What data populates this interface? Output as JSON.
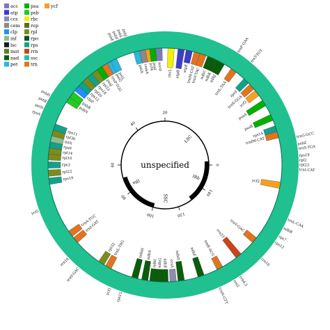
{
  "center_label": "unspecified",
  "legend": [
    {
      "label": "acc",
      "color": "#7b7bb5"
    },
    {
      "label": "atp",
      "color": "#3d3dc9"
    },
    {
      "label": "ccs",
      "color": "#8c8cb0"
    },
    {
      "label": "cem",
      "color": "#8a8a8a"
    },
    {
      "label": "clp",
      "color": "#1e90ff"
    },
    {
      "label": "inf",
      "color": "#8fbc8f"
    },
    {
      "label": "lsc",
      "color": "#1a1a1a"
    },
    {
      "label": "mat",
      "color": "#5f7f2a"
    },
    {
      "label": "nad",
      "color": "#0a5d0a"
    },
    {
      "label": "pet",
      "color": "#29b6e0"
    },
    {
      "label": "psa",
      "color": "#00b000"
    },
    {
      "label": "psb",
      "color": "#22c922"
    },
    {
      "label": "rbc",
      "color": "#f0f000"
    },
    {
      "label": "rep",
      "color": "#556b2f"
    },
    {
      "label": "rpl",
      "color": "#7a8c1e"
    },
    {
      "label": "rpo",
      "color": "#0f4d2f"
    },
    {
      "label": "rps",
      "color": "#14a08a"
    },
    {
      "label": "rrn",
      "color": "#c8441a"
    },
    {
      "label": "ssc",
      "color": "#20c0a8"
    },
    {
      "label": "trn",
      "color": "#e2731f"
    },
    {
      "label": "ycf",
      "color": "#f5a020"
    }
  ],
  "region_labels": [
    "LSC",
    "IRb",
    "SSC",
    "IRa"
  ],
  "ticks": [
    "0",
    "20",
    "40",
    "60",
    "80",
    "100",
    "120",
    "140"
  ],
  "genes": [
    {
      "label": "rps19",
      "angle": 86,
      "side": "out",
      "color": "#14a08a",
      "r0": 174,
      "r1": 184
    },
    {
      "label": "rpl2",
      "angle": 88,
      "side": "out",
      "color": "#7a8c1e",
      "r0": 174,
      "r1": 184
    },
    {
      "label": "rpl23",
      "angle": 90,
      "side": "out",
      "color": "#7a8c1e",
      "r0": 174,
      "r1": 184
    },
    {
      "label": "trnI-CAT",
      "angle": 92,
      "side": "out",
      "color": "#e2731f",
      "r0": 174,
      "r1": 184
    },
    {
      "label": "ycf2",
      "angle": 100,
      "side": "in",
      "color": "#f5a020",
      "r0": 140,
      "r1": 172
    },
    {
      "label": "trnL-CAA",
      "angle": 114,
      "side": "out",
      "color": "#e2731f",
      "r0": 174,
      "r1": 184
    },
    {
      "label": "ndhB",
      "angle": 118,
      "side": "out",
      "color": "#0a5d0a",
      "r0": 174,
      "r1": 184
    },
    {
      "label": "rps7",
      "angle": 122,
      "side": "out",
      "color": "#14a08a",
      "r0": 174,
      "r1": 184
    },
    {
      "label": "rps12",
      "angle": 125,
      "side": "out",
      "color": "#14a08a",
      "r0": 174,
      "r1": 184
    },
    {
      "label": "trnV-GAC",
      "angle": 130,
      "side": "in",
      "color": "#e2731f",
      "r0": 150,
      "r1": 172
    },
    {
      "label": "rrn16",
      "angle": 134,
      "side": "out",
      "color": "#c8441a",
      "r0": 174,
      "r1": 184
    },
    {
      "label": "rrn23",
      "angle": 141,
      "side": "in",
      "color": "#c8441a",
      "r0": 136,
      "r1": 172
    },
    {
      "label": "rrn4.5",
      "angle": 146,
      "side": "out",
      "color": "#c8441a",
      "r0": 174,
      "r1": 184
    },
    {
      "label": "rrn5",
      "angle": 149,
      "side": "out",
      "color": "#c8441a",
      "r0": 174,
      "r1": 184
    },
    {
      "label": "trnR-ACG",
      "angle": 152,
      "side": "in",
      "color": "#e2731f",
      "r0": 150,
      "r1": 172
    },
    {
      "label": "trnN-GTT",
      "angle": 156,
      "side": "out",
      "color": "#e2731f",
      "r0": 174,
      "r1": 184
    },
    {
      "label": "ndhF",
      "angle": 162,
      "side": "in",
      "color": "#0a5d0a",
      "r0": 140,
      "r1": 172
    },
    {
      "label": "ndhD",
      "angle": 172,
      "side": "in",
      "color": "#0a5d0a",
      "r0": 140,
      "r1": 172
    },
    {
      "label": "ccsA",
      "angle": 176,
      "side": "in",
      "color": "#8c8cb0",
      "r0": 150,
      "r1": 172
    },
    {
      "label": "ndhE",
      "angle": 180,
      "side": "in",
      "color": "#0a5d0a",
      "r0": 150,
      "r1": 172
    },
    {
      "label": "ndhG",
      "angle": 183,
      "side": "in",
      "color": "#0a5d0a",
      "r0": 150,
      "r1": 172
    },
    {
      "label": "ndhI",
      "angle": 186,
      "side": "in",
      "color": "#0a5d0a",
      "r0": 150,
      "r1": 172
    },
    {
      "label": "ndhA",
      "angle": 190,
      "side": "in",
      "color": "#0a5d0a",
      "r0": 140,
      "r1": 172
    },
    {
      "label": "ndhH",
      "angle": 195,
      "side": "in",
      "color": "#0a5d0a",
      "r0": 140,
      "r1": 172
    },
    {
      "label": "rps15",
      "angle": 199,
      "side": "out",
      "color": "#14a08a",
      "r0": 174,
      "r1": 184
    },
    {
      "label": "ycf1",
      "angle": 204,
      "side": "out",
      "color": "#f5a020",
      "r0": 174,
      "r1": 184
    },
    {
      "label": "trnL-TAG",
      "angle": 209,
      "side": "in",
      "color": "#e2731f",
      "r0": 150,
      "r1": 172
    },
    {
      "label": "rpl32",
      "angle": 213,
      "side": "in",
      "color": "#7a8c1e",
      "r0": 150,
      "r1": 172
    },
    {
      "label": "trnV-GAC",
      "angle": 220,
      "side": "out",
      "color": "#e2731f",
      "r0": 174,
      "r1": 184
    },
    {
      "label": "rrn16",
      "angle": 226,
      "side": "out",
      "color": "#c8441a",
      "r0": 174,
      "r1": 184
    },
    {
      "label": "trnI-GAT",
      "angle": 230,
      "side": "in",
      "color": "#e2731f",
      "r0": 150,
      "r1": 172
    },
    {
      "label": "trnA-TGC",
      "angle": 234,
      "side": "in",
      "color": "#e2731f",
      "r0": 150,
      "r1": 172
    },
    {
      "label": "ycf2",
      "angle": 250,
      "side": "out",
      "color": "#f5a020",
      "r0": 174,
      "r1": 184
    },
    {
      "label": "rps19",
      "angle": 262,
      "side": "in",
      "color": "#14a08a",
      "r0": 150,
      "r1": 172
    },
    {
      "label": "rpl22",
      "angle": 266,
      "side": "in",
      "color": "#7a8c1e",
      "r0": 150,
      "r1": 172
    },
    {
      "label": "rps3",
      "angle": 270,
      "side": "in",
      "color": "#14a08a",
      "r0": 150,
      "r1": 172
    },
    {
      "label": "rpl16",
      "angle": 274,
      "side": "in",
      "color": "#7a8c1e",
      "r0": 150,
      "r1": 172
    },
    {
      "label": "rpl14",
      "angle": 277,
      "side": "in",
      "color": "#7a8c1e",
      "r0": 150,
      "r1": 172
    },
    {
      "label": "rps8",
      "angle": 280,
      "side": "in",
      "color": "#14a08a",
      "r0": 150,
      "r1": 172
    },
    {
      "label": "infA",
      "angle": 283,
      "side": "in",
      "color": "#8fbc8f",
      "r0": 150,
      "r1": 172
    },
    {
      "label": "rpl36",
      "angle": 286,
      "side": "in",
      "color": "#7a8c1e",
      "r0": 150,
      "r1": 172
    },
    {
      "label": "rps11",
      "angle": 289,
      "side": "in",
      "color": "#14a08a",
      "r0": 150,
      "r1": 172
    },
    {
      "label": "rpoA",
      "angle": 292,
      "side": "out",
      "color": "#0f4d2f",
      "r0": 174,
      "r1": 184
    },
    {
      "label": "petD",
      "angle": 295,
      "side": "out",
      "color": "#29b6e0",
      "r0": 174,
      "r1": 184
    },
    {
      "label": "petB",
      "angle": 298,
      "side": "out",
      "color": "#29b6e0",
      "r0": 174,
      "r1": 184
    },
    {
      "label": "psbH",
      "angle": 301,
      "side": "out",
      "color": "#22c922",
      "r0": 174,
      "r1": 184
    },
    {
      "label": "psbN",
      "angle": 304,
      "side": "in",
      "color": "#22c922",
      "r0": 150,
      "r1": 172
    },
    {
      "label": "psbB",
      "angle": 307,
      "side": "in",
      "color": "#22c922",
      "r0": 150,
      "r1": 172
    },
    {
      "label": "clpP",
      "angle": 311,
      "side": "in",
      "color": "#1e90ff",
      "r0": 150,
      "r1": 172
    },
    {
      "label": "rps12",
      "angle": 314,
      "side": "in",
      "color": "#14a08a",
      "r0": 150,
      "r1": 172
    },
    {
      "label": "rpl20",
      "angle": 317,
      "side": "in",
      "color": "#7a8c1e",
      "r0": 150,
      "r1": 172
    },
    {
      "label": "rps18",
      "angle": 320,
      "side": "in",
      "color": "#14a08a",
      "r0": 150,
      "r1": 172
    },
    {
      "label": "rpl33",
      "angle": 323,
      "side": "in",
      "color": "#7a8c1e",
      "r0": 150,
      "r1": 172
    },
    {
      "label": "psaJ",
      "angle": 326,
      "side": "in",
      "color": "#00b000",
      "r0": 150,
      "r1": 172
    },
    {
      "label": "trnP-TGG",
      "angle": 329,
      "side": "in",
      "color": "#e2731f",
      "r0": 150,
      "r1": 172
    },
    {
      "label": "petG",
      "angle": 332,
      "side": "in",
      "color": "#29b6e0",
      "r0": 150,
      "r1": 172
    },
    {
      "label": "petL",
      "angle": 334,
      "side": "in",
      "color": "#29b6e0",
      "r0": 150,
      "r1": 172
    },
    {
      "label": "psbE",
      "angle": 337,
      "side": "out",
      "color": "#22c922",
      "r0": 174,
      "r1": 184
    },
    {
      "label": "psbF",
      "angle": 339,
      "side": "out",
      "color": "#22c922",
      "r0": 174,
      "r1": 184
    },
    {
      "label": "psbL",
      "angle": 341,
      "side": "out",
      "color": "#22c922",
      "r0": 174,
      "r1": 184
    },
    {
      "label": "psbJ",
      "angle": 343,
      "side": "out",
      "color": "#22c922",
      "r0": 174,
      "r1": 184
    },
    {
      "label": "petA",
      "angle": 346,
      "side": "in",
      "color": "#29b6e0",
      "r0": 150,
      "r1": 172
    },
    {
      "label": "cemA",
      "angle": 349,
      "side": "in",
      "color": "#8a8a8a",
      "r0": 150,
      "r1": 172
    },
    {
      "label": "ycf4",
      "angle": 352,
      "side": "in",
      "color": "#f5a020",
      "r0": 150,
      "r1": 172
    },
    {
      "label": "psaI",
      "angle": 354,
      "side": "in",
      "color": "#00b000",
      "r0": 150,
      "r1": 172
    },
    {
      "label": "accD",
      "angle": 357,
      "side": "in",
      "color": "#7b7bb5",
      "r0": 150,
      "r1": 172
    },
    {
      "label": "rbcL",
      "angle": 3,
      "side": "in",
      "color": "#f0f000",
      "r0": 140,
      "r1": 172
    },
    {
      "label": "atpB",
      "angle": 8,
      "side": "in",
      "color": "#3d3dc9",
      "r0": 140,
      "r1": 172
    },
    {
      "label": "atpE",
      "angle": 12,
      "side": "in",
      "color": "#3d3dc9",
      "r0": 150,
      "r1": 172
    },
    {
      "label": "trnM-CAT",
      "angle": 16,
      "side": "in",
      "color": "#e2731f",
      "r0": 150,
      "r1": 172
    },
    {
      "label": "trnV-TAC",
      "angle": 19,
      "side": "in",
      "color": "#e2731f",
      "r0": 150,
      "r1": 172
    },
    {
      "label": "ndhC",
      "angle": 23,
      "side": "in",
      "color": "#0a5d0a",
      "r0": 150,
      "r1": 172
    },
    {
      "label": "ndhK",
      "angle": 26,
      "side": "in",
      "color": "#0a5d0a",
      "r0": 150,
      "r1": 172
    },
    {
      "label": "ndhJ",
      "angle": 29,
      "side": "in",
      "color": "#0a5d0a",
      "r0": 150,
      "r1": 172
    },
    {
      "label": "trnF-GAA",
      "angle": 33,
      "side": "out",
      "color": "#e2731f",
      "r0": 174,
      "r1": 184
    },
    {
      "label": "trnL-TAA",
      "angle": 36,
      "side": "in",
      "color": "#e2731f",
      "r0": 150,
      "r1": 172
    },
    {
      "label": "trnT-TGT",
      "angle": 40,
      "side": "out",
      "color": "#e2731f",
      "r0": 174,
      "r1": 184
    },
    {
      "label": "rps4",
      "angle": 44,
      "side": "in",
      "color": "#14a08a",
      "r0": 150,
      "r1": 172
    },
    {
      "label": "trnS-GGA",
      "angle": 48,
      "side": "in",
      "color": "#e2731f",
      "r0": 150,
      "r1": 172
    },
    {
      "label": "ycf3",
      "angle": 52,
      "side": "in",
      "color": "#f5a020",
      "r0": 150,
      "r1": 172
    },
    {
      "label": "psaA",
      "angle": 58,
      "side": "in",
      "color": "#00b000",
      "r0": 140,
      "r1": 172
    },
    {
      "label": "psaB",
      "angle": 66,
      "side": "in",
      "color": "#00b000",
      "r0": 140,
      "r1": 172
    },
    {
      "label": "rps14",
      "angle": 72,
      "side": "in",
      "color": "#14a08a",
      "r0": 150,
      "r1": 172
    },
    {
      "label": "trnfM-CAT",
      "angle": 75,
      "side": "in",
      "color": "#e2731f",
      "r0": 150,
      "r1": 172
    },
    {
      "label": "trnG-GCC",
      "angle": 78,
      "side": "out",
      "color": "#e2731f",
      "r0": 174,
      "r1": 184
    },
    {
      "label": "psbZ",
      "angle": 81,
      "side": "out",
      "color": "#22c922",
      "r0": 174,
      "r1": 184
    },
    {
      "label": "trnS-TGA",
      "angle": 83,
      "side": "out",
      "color": "#e2731f",
      "r0": 174,
      "r1": 184
    }
  ]
}
